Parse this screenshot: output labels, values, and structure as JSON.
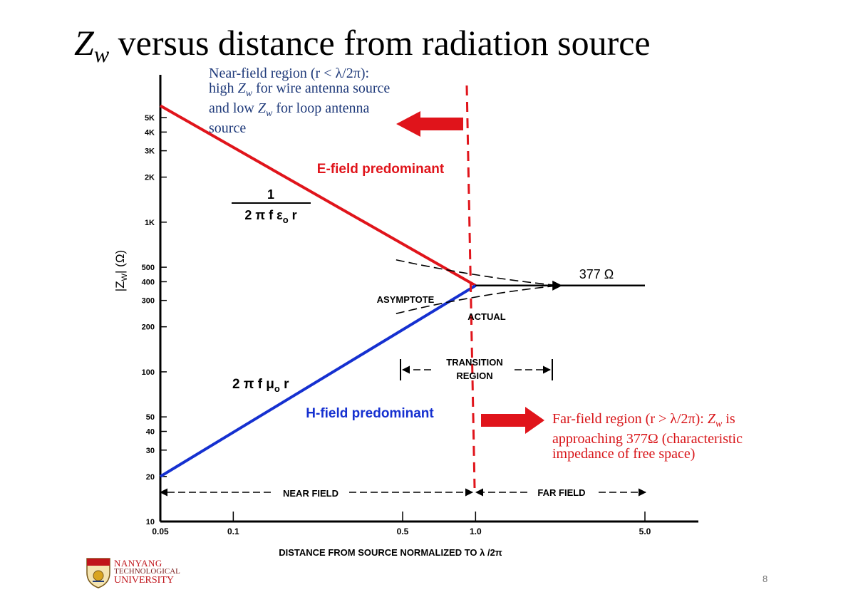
{
  "slide": {
    "title_var": "Z",
    "title_sub": "w",
    "title_rest": " versus distance from radiation source",
    "page_number": "8"
  },
  "notes": {
    "near": {
      "l1": "Near-field region (r < λ/2π):",
      "l2_a": "high ",
      "l2_var": "Z",
      "l2_sub": "w",
      "l2_b": " for wire antenna source",
      "l3_a": "and low ",
      "l3_var": "Z",
      "l3_sub": "w",
      "l3_b": " for loop antenna",
      "l4": "source"
    },
    "far": {
      "l1_a": "Far-field region (r > λ/2π): ",
      "l1_var": "Z",
      "l1_sub": "w",
      "l1_b": " is",
      "l2": "approaching 377Ω (characteristic",
      "l3": "impedance of free space)"
    }
  },
  "logo": {
    "line1": "NANYANG",
    "line2": "TECHNOLOGICAL",
    "line3": "UNIVERSITY"
  },
  "diagram": {
    "y_label": "|Z",
    "y_label_sub": "W",
    "y_label_end": "| (Ω)",
    "x_label": "DISTANCE FROM SOURCE NORMALIZED TO λ /2π",
    "e_field_label": "E-field predominant",
    "h_field_label": "H-field predominant",
    "e_formula_num": "1",
    "e_formula_den": "2 π f ε",
    "e_formula_den_sub": "o",
    "e_formula_den_end": " r",
    "h_formula": "2 π f μ",
    "h_formula_sub": "o",
    "h_formula_end": " r",
    "asymptote": "ASYMPTOTE",
    "actual": "ACTUAL",
    "transition_1": "TRANSITION",
    "transition_2": "REGION",
    "impedance_377": "377 Ω",
    "near_field": "NEAR FIELD",
    "far_field": "FAR FIELD",
    "colors": {
      "e_field": "#e0141b",
      "h_field": "#1530d0",
      "boundary": "#e0141b",
      "arrow": "#e0141b"
    }
  },
  "chart_data": {
    "type": "line",
    "x_scale": "log",
    "y_scale": "log",
    "xlim": [
      0.05,
      5.0
    ],
    "ylim": [
      10,
      5000
    ],
    "x_ticks": [
      0.05,
      0.1,
      0.5,
      1.0,
      5.0
    ],
    "x_tick_labels": [
      "0.05",
      "0.1",
      "0.5",
      "1.0",
      "5.0"
    ],
    "y_ticks": [
      10,
      20,
      30,
      40,
      50,
      100,
      200,
      300,
      400,
      500,
      1000,
      2000,
      3000,
      4000,
      5000
    ],
    "y_tick_labels": [
      "10",
      "20",
      "30",
      "40",
      "50",
      "100",
      "200",
      "300",
      "400",
      "500",
      "1K",
      "2K",
      "3K",
      "4K",
      "5K"
    ],
    "series": [
      {
        "name": "E-field predominant",
        "x": [
          0.05,
          1.0
        ],
        "y": [
          6000,
          377
        ]
      },
      {
        "name": "H-field predominant",
        "x": [
          0.05,
          1.0
        ],
        "y": [
          20,
          377
        ]
      },
      {
        "x": [
          1.0,
          5.0
        ],
        "y": [
          377,
          377
        ]
      }
    ]
  }
}
